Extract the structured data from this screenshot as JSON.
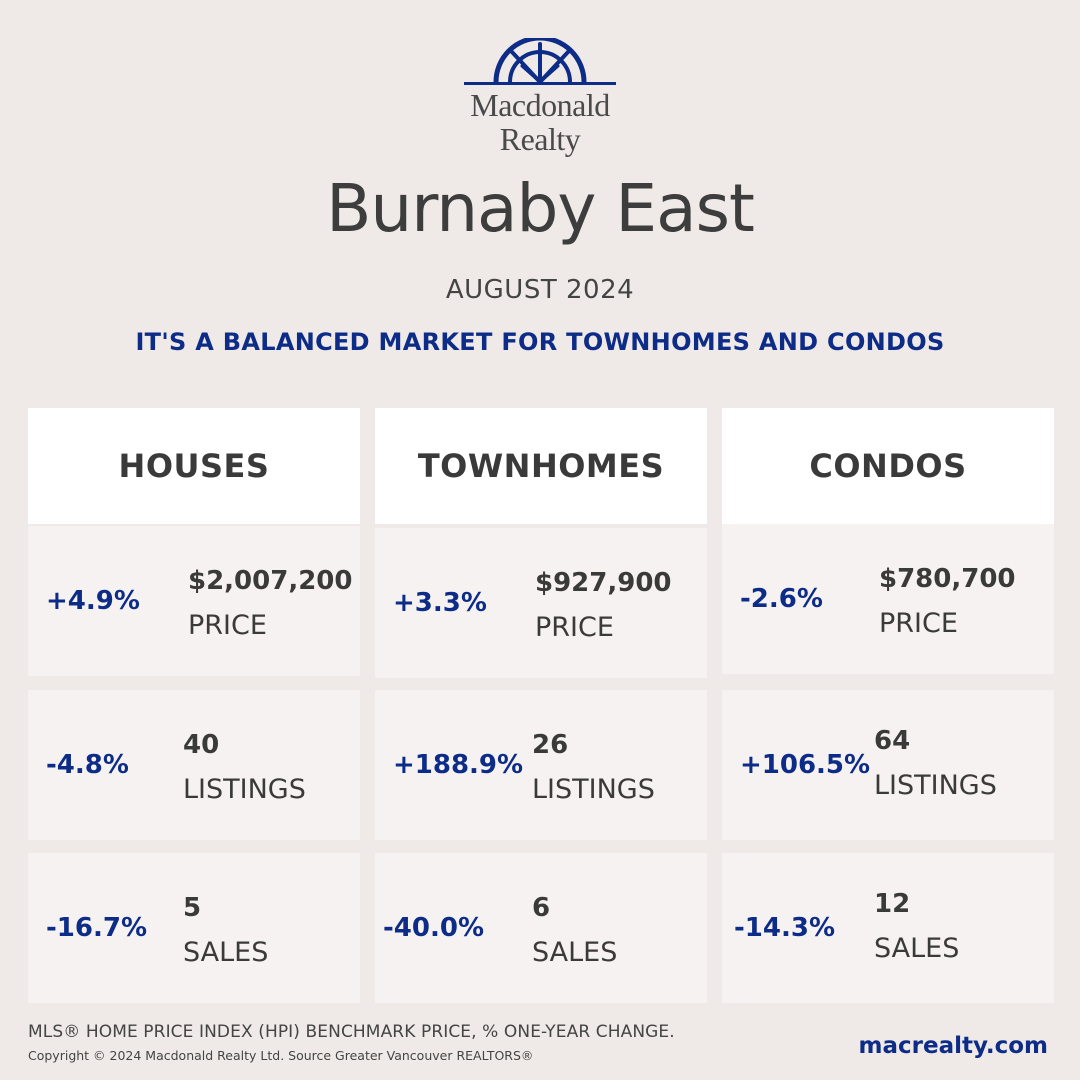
{
  "brand": {
    "line1": "Macdonald",
    "line2": "Realty",
    "color": "#0d2c87",
    "logo_icon": "sunburst-arch-logo"
  },
  "header": {
    "title": "Burnaby East",
    "month": "AUGUST 2024",
    "headline": "IT'S A BALANCED MARKET FOR TOWNHOMES AND CONDOS"
  },
  "columns": [
    {
      "name": "HOUSES",
      "price": {
        "change": "+4.9%",
        "value": "$2,007,200",
        "label": "PRICE"
      },
      "listings": {
        "change": "-4.8%",
        "value": "40",
        "label": "LISTINGS"
      },
      "sales": {
        "change": "-16.7%",
        "value": "5",
        "label": "SALES"
      }
    },
    {
      "name": "TOWNHOMES",
      "price": {
        "change": "+3.3%",
        "value": "$927,900",
        "label": "PRICE"
      },
      "listings": {
        "change": "+188.9%",
        "value": "26",
        "label": "LISTINGS"
      },
      "sales": {
        "change": "-40.0%",
        "value": "6",
        "label": "SALES"
      }
    },
    {
      "name": "CONDOS",
      "price": {
        "change": "-2.6%",
        "value": "$780,700",
        "label": "PRICE"
      },
      "listings": {
        "change": "+106.5%",
        "value": "64",
        "label": "LISTINGS"
      },
      "sales": {
        "change": "-14.3%",
        "value": "12",
        "label": "SALES"
      }
    }
  ],
  "footer": {
    "note": "MLS® HOME PRICE INDEX (HPI) BENCHMARK PRICE, % ONE-YEAR CHANGE.",
    "copyright": "Copyright © 2024 Macdonald Realty Ltd. Source Greater Vancouver REALTORS®",
    "url": "macrealty.com"
  }
}
